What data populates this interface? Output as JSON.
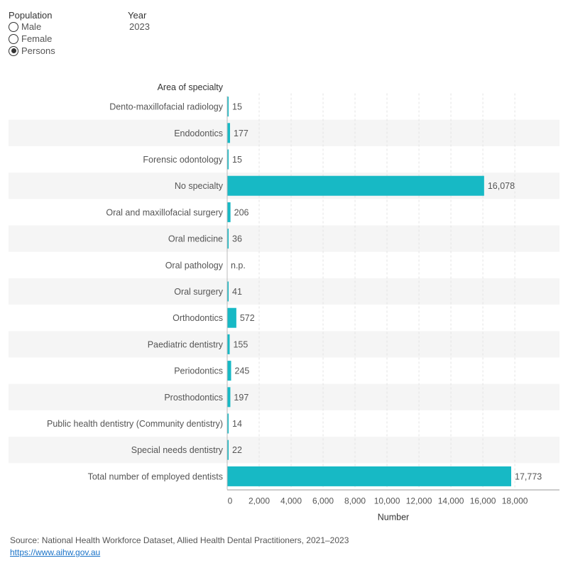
{
  "filters": {
    "population_title": "Population",
    "options": [
      {
        "label": "Male",
        "selected": false
      },
      {
        "label": "Female",
        "selected": false
      },
      {
        "label": "Persons",
        "selected": true
      }
    ],
    "year_title": "Year",
    "year_value": "2023"
  },
  "chart_data": {
    "type": "bar",
    "orientation": "horizontal",
    "category_header": "Area of specialty",
    "xlabel": "Number",
    "xlim": [
      0,
      20000
    ],
    "xticks": [
      0,
      2000,
      4000,
      6000,
      8000,
      10000,
      12000,
      14000,
      16000,
      18000
    ],
    "xtick_labels": [
      "0",
      "2,000",
      "4,000",
      "6,000",
      "8,000",
      "10,000",
      "12,000",
      "14,000",
      "16,000",
      "18,000"
    ],
    "bar_color": "#17b9c5",
    "band_color": "#f5f5f5",
    "categories": [
      "Dento-maxillofacial radiology",
      "Endodontics",
      "Forensic odontology",
      "No specialty",
      "Oral and maxillofacial surgery",
      "Oral medicine",
      "Oral pathology",
      "Oral surgery",
      "Orthodontics",
      "Paediatric dentistry",
      "Periodontics",
      "Prosthodontics",
      "Public health dentistry (Community dentistry)",
      "Special needs dentistry",
      "Total number of employed dentists"
    ],
    "values": [
      15,
      177,
      15,
      16078,
      206,
      36,
      null,
      41,
      572,
      155,
      245,
      197,
      14,
      22,
      17773
    ],
    "value_labels": [
      "15",
      "177",
      "15",
      "16,078",
      "206",
      "36",
      "n.p.",
      "41",
      "572",
      "155",
      "245",
      "197",
      "14",
      "22",
      "17,773"
    ]
  },
  "source": {
    "text": "Source: National Health Workforce Dataset, Allied Health Dental Practitioners, 2021–2023",
    "link": "https://www.aihw.gov.au"
  }
}
